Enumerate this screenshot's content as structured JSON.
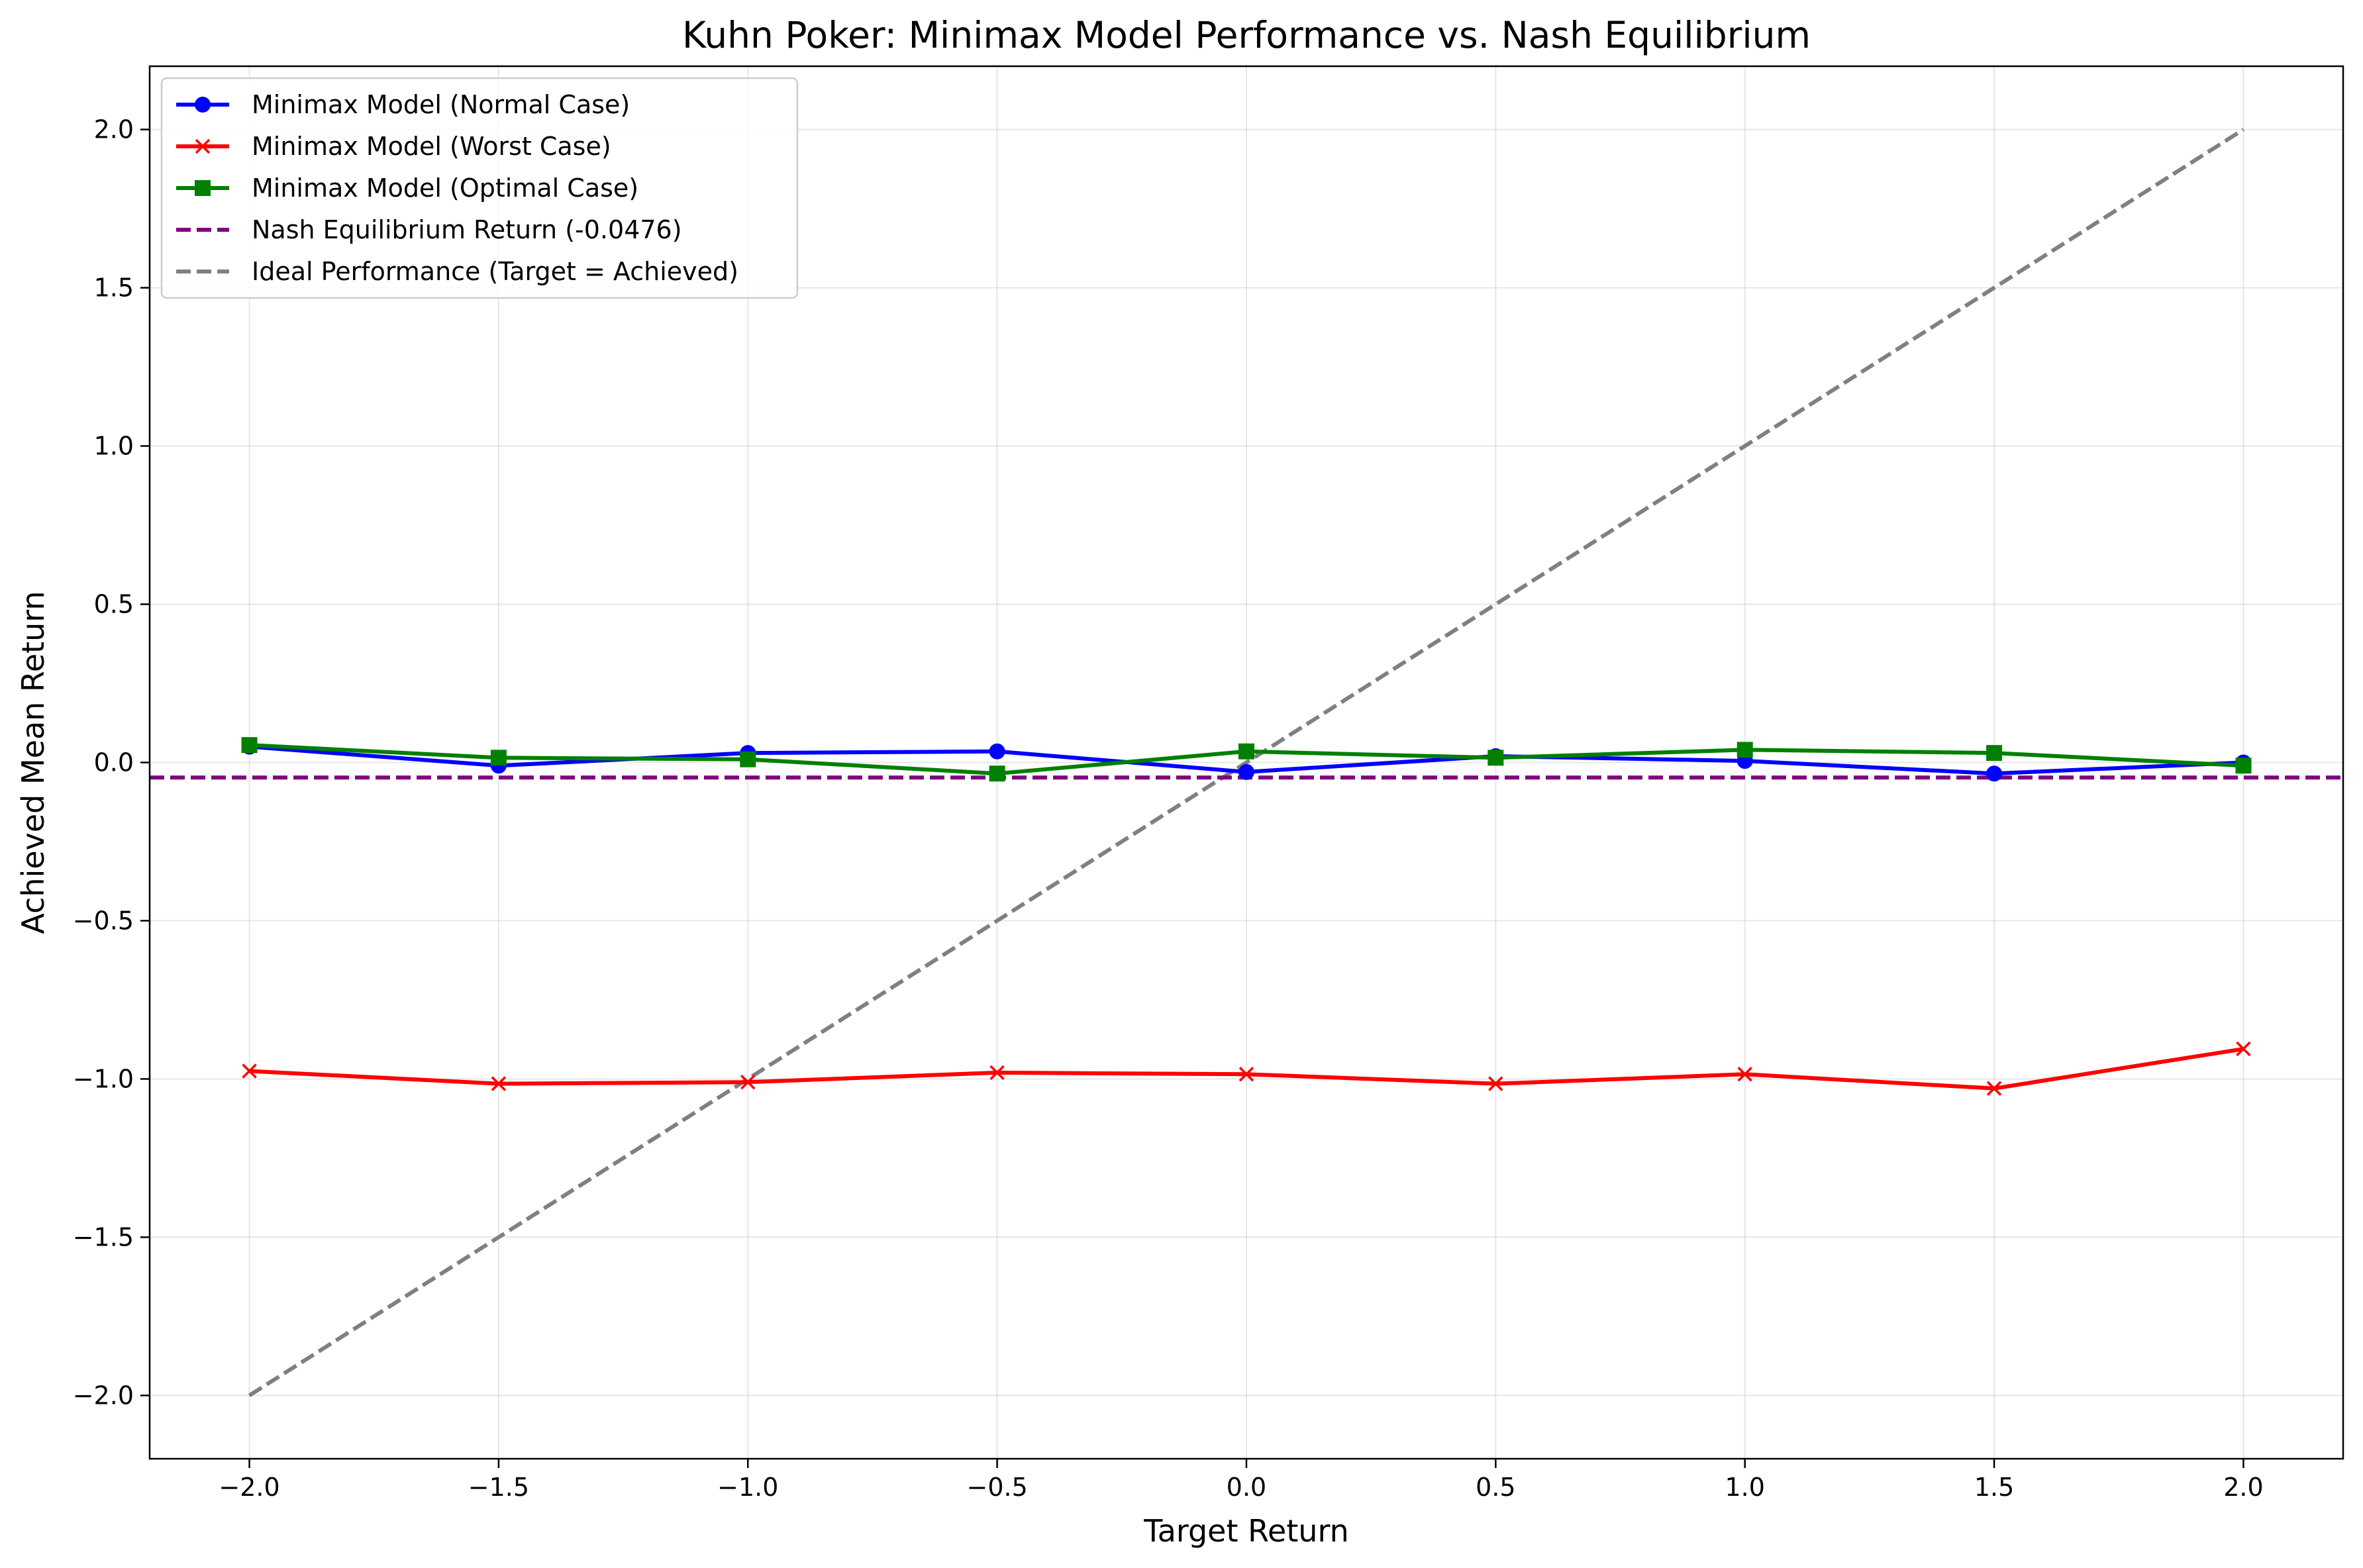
{
  "chart_data": {
    "type": "line",
    "title": "Kuhn Poker: Minimax Model Performance vs. Nash Equilibrium",
    "xlabel": "Target Return",
    "ylabel": "Achieved Mean Return",
    "xlim": [
      -2.2,
      2.2
    ],
    "ylim": [
      -2.2,
      2.2
    ],
    "x": [
      -2.0,
      -1.5,
      -1.0,
      -0.5,
      0.0,
      0.5,
      1.0,
      1.5,
      2.0
    ],
    "x_ticks": [
      -2.0,
      -1.5,
      -1.0,
      -0.5,
      0.0,
      0.5,
      1.0,
      1.5,
      2.0
    ],
    "y_ticks": [
      -2.0,
      -1.5,
      -1.0,
      -0.5,
      0.0,
      0.5,
      1.0,
      1.5,
      2.0
    ],
    "x_tick_labels": [
      "−2.0",
      "−1.5",
      "−1.0",
      "−0.5",
      "0.0",
      "0.5",
      "1.0",
      "1.5",
      "2.0"
    ],
    "y_tick_labels": [
      "−2.0",
      "−1.5",
      "−1.0",
      "−0.5",
      "0.0",
      "0.5",
      "1.0",
      "1.5",
      "2.0"
    ],
    "grid": true,
    "legend_position": "top-left",
    "series": [
      {
        "name": "Minimax Model (Normal Case)",
        "color": "#0000ff",
        "marker": "circle",
        "linestyle": "solid",
        "values": [
          0.05,
          -0.01,
          0.03,
          0.035,
          -0.03,
          0.02,
          0.005,
          -0.035,
          0.0
        ]
      },
      {
        "name": "Minimax Model (Worst Case)",
        "color": "#ff0000",
        "marker": "x",
        "linestyle": "solid",
        "values": [
          -0.975,
          -1.015,
          -1.01,
          -0.98,
          -0.985,
          -1.015,
          -0.985,
          -1.03,
          -0.905
        ]
      },
      {
        "name": "Minimax Model (Optimal Case)",
        "color": "#008000",
        "marker": "square",
        "linestyle": "solid",
        "values": [
          0.055,
          0.015,
          0.01,
          -0.035,
          0.035,
          0.015,
          0.04,
          0.03,
          -0.01
        ]
      },
      {
        "name": "Nash Equilibrium Return (-0.0476)",
        "color": "#800080",
        "marker": "none",
        "linestyle": "dashed",
        "kind": "hline",
        "y": -0.0476
      },
      {
        "name": "Ideal Performance (Target = Achieved)",
        "color": "#808080",
        "marker": "none",
        "linestyle": "dashed",
        "kind": "identity",
        "values": [
          -2.0,
          2.0
        ],
        "x_values": [
          -2.0,
          2.0
        ]
      }
    ]
  }
}
